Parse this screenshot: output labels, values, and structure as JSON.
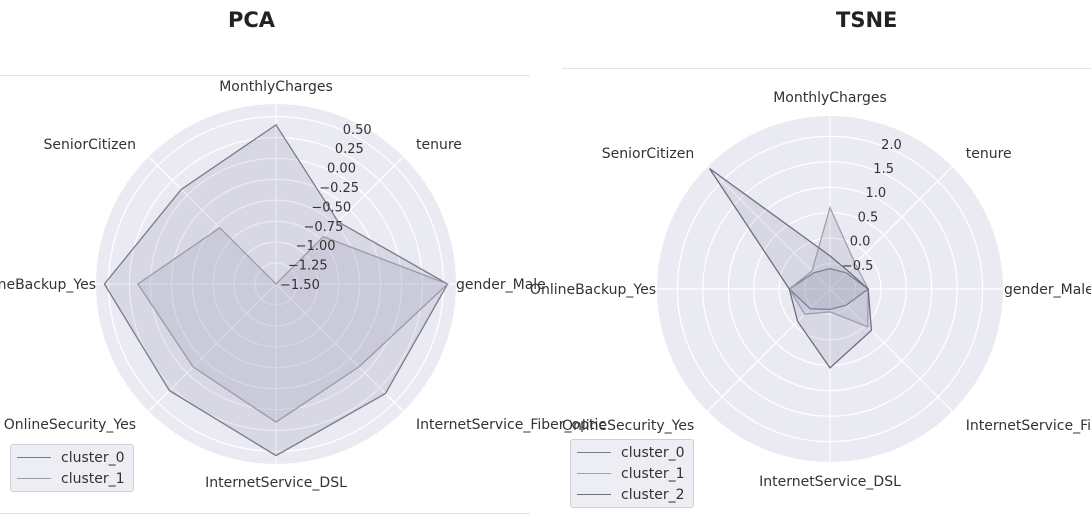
{
  "panels": {
    "left_title": "PCA",
    "right_title": "TSNE"
  },
  "chart_data": [
    {
      "type": "radar",
      "title": "PCA",
      "axes": [
        "MonthlyCharges",
        "tenure",
        "gender_Male",
        "InternetService_Fiber_optic",
        "InternetService_DSL",
        "OnlineSecurity_Yes",
        "OnlineBackup_Yes",
        "SeniorCitizen"
      ],
      "radial_ticks": [
        "−1.50",
        "−1.25",
        "−1.00",
        "−0.75",
        "−0.50",
        "−0.25",
        "0.00",
        "0.25",
        "0.50"
      ],
      "rlim": [
        -1.5,
        0.65
      ],
      "series": [
        {
          "name": "cluster_0",
          "color": "#7a7a8a",
          "values": [
            0.4,
            -0.45,
            0.55,
            0.35,
            0.55,
            0.3,
            0.55,
            0.1
          ]
        },
        {
          "name": "cluster_1",
          "color": "#9a9aa8",
          "values": [
            -1.5,
            -0.7,
            0.55,
            -0.1,
            0.15,
            -0.1,
            0.15,
            -0.55
          ]
        }
      ],
      "legend_position": "lower-left",
      "grid": true
    },
    {
      "type": "radar",
      "title": "TSNE",
      "axes": [
        "MonthlyCharges",
        "tenure",
        "gender_Male",
        "InternetService_Fiber_optic",
        "InternetService_DSL",
        "OnlineSecurity_Yes",
        "OnlineBackup_Yes",
        "SeniorCitizen"
      ],
      "radial_ticks": [
        "−0.5",
        "0.0",
        "0.5",
        "1.0",
        "1.5",
        "2.0"
      ],
      "rlim": [
        -1.0,
        2.4
      ],
      "series": [
        {
          "name": "cluster_0",
          "color": "#7a7a8a",
          "values": [
            -0.6,
            -0.55,
            -0.25,
            -0.55,
            -0.6,
            -0.45,
            -0.2,
            -0.55
          ]
        },
        {
          "name": "cluster_1",
          "color": "#a0a0ae",
          "values": [
            0.6,
            -0.3,
            -0.25,
            0.05,
            -0.55,
            -0.3,
            -0.2,
            -0.5
          ]
        },
        {
          "name": "cluster_2",
          "color": "#6e6e7e",
          "values": [
            -0.35,
            -0.5,
            -0.25,
            0.15,
            0.55,
            -0.1,
            -0.2,
            2.35
          ]
        }
      ],
      "legend_position": "lower-left",
      "grid": true
    }
  ]
}
